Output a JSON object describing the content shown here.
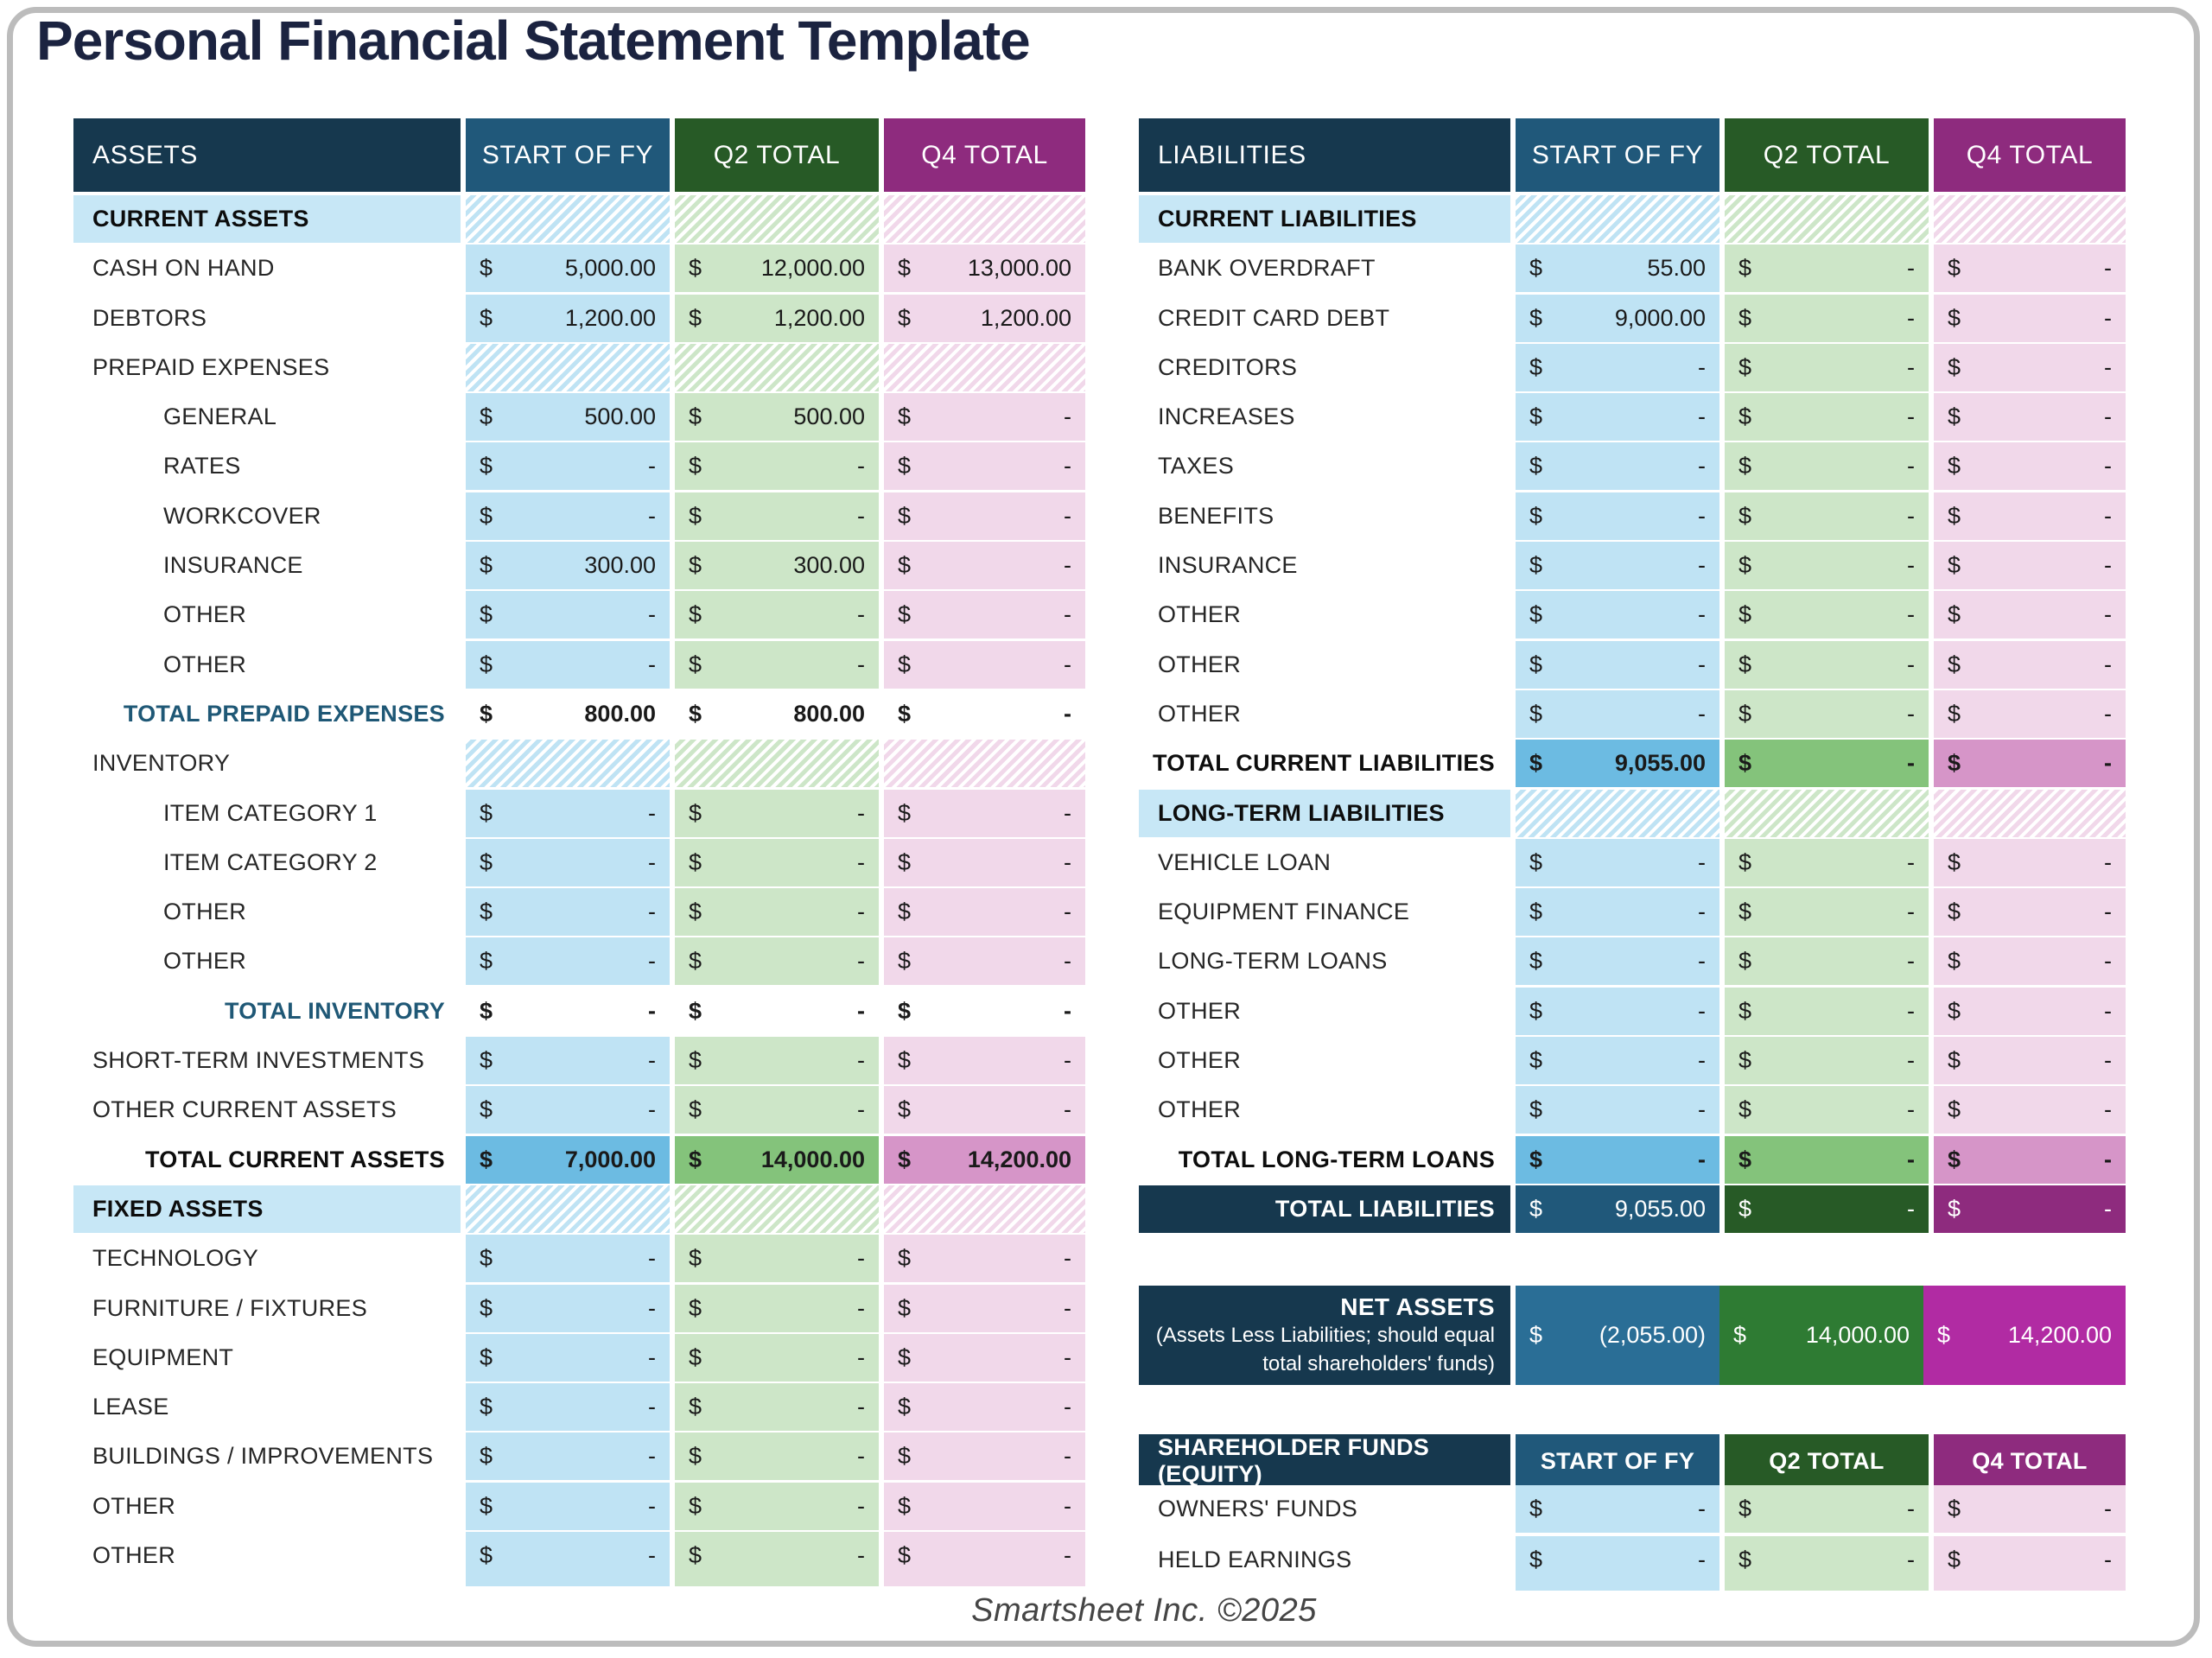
{
  "title": "Personal Financial Statement Template",
  "footer": "Smartsheet Inc. ©2025",
  "currency": "$",
  "columns": [
    "START OF FY",
    "Q2 TOTAL",
    "Q4 TOTAL"
  ],
  "colors": {
    "title": "#1b2340",
    "navy": "#16384e",
    "hblue": "#20587a",
    "hgreen": "#275a26",
    "hpurple": "#8e2b7e",
    "lblue": "#bfe3f4",
    "lgreen": "#cde6c8",
    "lpink": "#f1d8ea",
    "mblue": "#6cbbe2",
    "mgreen": "#84c37b",
    "mpink": "#d695c8",
    "nblue": "#2a6e96",
    "ngreen": "#2e7b33",
    "npink": "#b12ba3",
    "section_bg": "#c7e7f6",
    "teal": "#1f5876"
  },
  "assets_table": {
    "header": "ASSETS",
    "rows": [
      {
        "type": "section",
        "label": "CURRENT ASSETS"
      },
      {
        "type": "item",
        "label": "CASH ON HAND",
        "values": [
          "5,000.00",
          "12,000.00",
          "13,000.00"
        ]
      },
      {
        "type": "item",
        "label": "DEBTORS",
        "values": [
          "1,200.00",
          "1,200.00",
          "1,200.00"
        ]
      },
      {
        "type": "subhead",
        "label": "PREPAID EXPENSES"
      },
      {
        "type": "indent",
        "label": "GENERAL",
        "values": [
          "500.00",
          "500.00",
          "-"
        ]
      },
      {
        "type": "indent",
        "label": "RATES",
        "values": [
          "-",
          "-",
          "-"
        ]
      },
      {
        "type": "indent",
        "label": "WORKCOVER",
        "values": [
          "-",
          "-",
          "-"
        ]
      },
      {
        "type": "indent",
        "label": "INSURANCE",
        "values": [
          "300.00",
          "300.00",
          "-"
        ]
      },
      {
        "type": "indent",
        "label": "OTHER",
        "values": [
          "-",
          "-",
          "-"
        ]
      },
      {
        "type": "indent",
        "label": "OTHER",
        "values": [
          "-",
          "-",
          "-"
        ]
      },
      {
        "type": "total-white",
        "label": "TOTAL PREPAID EXPENSES",
        "values": [
          "800.00",
          "800.00",
          "-"
        ]
      },
      {
        "type": "subhead",
        "label": "INVENTORY"
      },
      {
        "type": "indent",
        "label": "ITEM CATEGORY 1",
        "values": [
          "-",
          "-",
          "-"
        ]
      },
      {
        "type": "indent",
        "label": "ITEM CATEGORY 2",
        "values": [
          "-",
          "-",
          "-"
        ]
      },
      {
        "type": "indent",
        "label": "OTHER",
        "values": [
          "-",
          "-",
          "-"
        ]
      },
      {
        "type": "indent",
        "label": "OTHER",
        "values": [
          "-",
          "-",
          "-"
        ]
      },
      {
        "type": "total-white",
        "label": "TOTAL INVENTORY",
        "values": [
          "-",
          "-",
          "-"
        ]
      },
      {
        "type": "item",
        "label": "SHORT-TERM INVESTMENTS",
        "values": [
          "-",
          "-",
          "-"
        ]
      },
      {
        "type": "item",
        "label": "OTHER CURRENT ASSETS",
        "values": [
          "-",
          "-",
          "-"
        ]
      },
      {
        "type": "total-medium",
        "label": "TOTAL CURRENT ASSETS",
        "values": [
          "7,000.00",
          "14,000.00",
          "14,200.00"
        ]
      },
      {
        "type": "section",
        "label": "FIXED ASSETS"
      },
      {
        "type": "item",
        "label": "TECHNOLOGY",
        "values": [
          "-",
          "-",
          "-"
        ]
      },
      {
        "type": "item",
        "label": "FURNITURE / FIXTURES",
        "values": [
          "-",
          "-",
          "-"
        ]
      },
      {
        "type": "item",
        "label": "EQUIPMENT",
        "values": [
          "-",
          "-",
          "-"
        ]
      },
      {
        "type": "item",
        "label": "LEASE",
        "values": [
          "-",
          "-",
          "-"
        ]
      },
      {
        "type": "item",
        "label": "BUILDINGS / IMPROVEMENTS",
        "values": [
          "-",
          "-",
          "-"
        ]
      },
      {
        "type": "item",
        "label": "OTHER",
        "values": [
          "-",
          "-",
          "-"
        ]
      },
      {
        "type": "item",
        "label": "OTHER",
        "values": [
          "-",
          "-",
          "-"
        ]
      }
    ]
  },
  "liabilities_table": {
    "header": "LIABILITIES",
    "rows": [
      {
        "type": "section",
        "label": "CURRENT LIABILITIES"
      },
      {
        "type": "item",
        "label": "BANK OVERDRAFT",
        "values": [
          "55.00",
          "-",
          "-"
        ]
      },
      {
        "type": "item",
        "label": "CREDIT CARD DEBT",
        "values": [
          "9,000.00",
          "-",
          "-"
        ]
      },
      {
        "type": "item",
        "label": "CREDITORS",
        "values": [
          "-",
          "-",
          "-"
        ]
      },
      {
        "type": "item",
        "label": "INCREASES",
        "values": [
          "-",
          "-",
          "-"
        ]
      },
      {
        "type": "item",
        "label": "TAXES",
        "values": [
          "-",
          "-",
          "-"
        ]
      },
      {
        "type": "item",
        "label": "BENEFITS",
        "values": [
          "-",
          "-",
          "-"
        ]
      },
      {
        "type": "item",
        "label": "INSURANCE",
        "values": [
          "-",
          "-",
          "-"
        ]
      },
      {
        "type": "item",
        "label": "OTHER",
        "values": [
          "-",
          "-",
          "-"
        ]
      },
      {
        "type": "item",
        "label": "OTHER",
        "values": [
          "-",
          "-",
          "-"
        ]
      },
      {
        "type": "item",
        "label": "OTHER",
        "values": [
          "-",
          "-",
          "-"
        ]
      },
      {
        "type": "total-medium",
        "label": "TOTAL CURRENT LIABILITIES",
        "values": [
          "9,055.00",
          "-",
          "-"
        ]
      },
      {
        "type": "section",
        "label": "LONG-TERM LIABILITIES"
      },
      {
        "type": "item",
        "label": "VEHICLE LOAN",
        "values": [
          "-",
          "-",
          "-"
        ]
      },
      {
        "type": "item",
        "label": "EQUIPMENT FINANCE",
        "values": [
          "-",
          "-",
          "-"
        ]
      },
      {
        "type": "item",
        "label": "LONG-TERM LOANS",
        "values": [
          "-",
          "-",
          "-"
        ]
      },
      {
        "type": "item",
        "label": "OTHER",
        "values": [
          "-",
          "-",
          "-"
        ]
      },
      {
        "type": "item",
        "label": "OTHER",
        "values": [
          "-",
          "-",
          "-"
        ]
      },
      {
        "type": "item",
        "label": "OTHER",
        "values": [
          "-",
          "-",
          "-"
        ]
      },
      {
        "type": "total-medium",
        "label": "TOTAL LONG-TERM LOANS",
        "values": [
          "-",
          "-",
          "-"
        ]
      },
      {
        "type": "total-dark",
        "label": "TOTAL LIABILITIES",
        "values": [
          "9,055.00",
          "-",
          "-"
        ]
      }
    ]
  },
  "net_assets": {
    "label": "NET ASSETS",
    "sublabel_line1": "(Assets Less Liabilities; should equal",
    "sublabel_line2": "total shareholders' funds)",
    "values": [
      "(2,055.00)",
      "14,000.00",
      "14,200.00"
    ]
  },
  "equity_table": {
    "header": "SHAREHOLDER FUNDS (EQUITY)",
    "columns": [
      "START OF FY",
      "Q2 TOTAL",
      "Q4 TOTAL"
    ],
    "rows": [
      {
        "type": "item",
        "label": "OWNERS' FUNDS",
        "values": [
          "-",
          "-",
          "-"
        ]
      },
      {
        "type": "item",
        "label": "HELD EARNINGS",
        "values": [
          "-",
          "-",
          "-"
        ]
      }
    ]
  }
}
